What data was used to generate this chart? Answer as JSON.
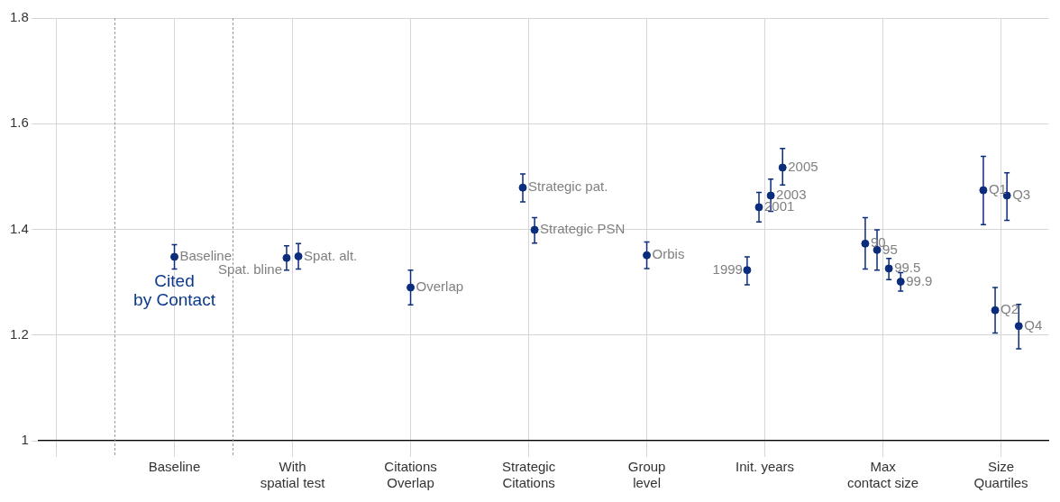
{
  "chart_data": {
    "type": "scatter",
    "categories": [
      null,
      "Baseline",
      "With spatial test",
      "Citations Overlap",
      "Strategic Citations",
      "Group level",
      "Init. years",
      "Max contact size",
      "Size Quartiles"
    ],
    "ylim": [
      1,
      1.8
    ],
    "yticks": [
      1,
      1.2,
      1.4,
      1.6,
      1.8
    ],
    "grid": true,
    "legend": false,
    "marker": "circle",
    "annotations": [
      "Cited by Contact"
    ],
    "series": [
      {
        "name": "Baseline",
        "color": "#0b2d7c",
        "values": [
          null,
          1.348,
          null,
          null,
          null,
          null,
          null,
          null,
          null
        ],
        "errors": [
          null,
          [
            1.325,
            1.371
          ],
          null,
          null,
          null,
          null,
          null,
          null,
          null
        ]
      },
      {
        "name": "Spat. bline",
        "color": "#0b2d7c",
        "values": [
          null,
          null,
          1.346,
          null,
          null,
          null,
          null,
          null,
          null
        ],
        "errors": [
          null,
          null,
          [
            1.323,
            1.369
          ],
          null,
          null,
          null,
          null,
          null,
          null
        ]
      },
      {
        "name": "Spat. alt.",
        "color": "#0b2d7c",
        "values": [
          null,
          null,
          1.349,
          null,
          null,
          null,
          null,
          null,
          null
        ],
        "errors": [
          null,
          null,
          [
            1.325,
            1.373
          ],
          null,
          null,
          null,
          null,
          null,
          null
        ]
      },
      {
        "name": "Overlap",
        "color": "#0b2d7c",
        "values": [
          null,
          null,
          null,
          1.29,
          null,
          null,
          null,
          null,
          null
        ],
        "errors": [
          null,
          null,
          null,
          [
            1.257,
            1.323
          ],
          null,
          null,
          null,
          null,
          null
        ]
      },
      {
        "name": "Strategic pat.",
        "color": "#0b2d7c",
        "values": [
          null,
          null,
          null,
          null,
          1.479,
          null,
          null,
          null,
          null
        ],
        "errors": [
          null,
          null,
          null,
          null,
          [
            1.452,
            1.505
          ],
          null,
          null,
          null,
          null
        ]
      },
      {
        "name": "Strategic PSN",
        "color": "#0b2d7c",
        "values": [
          null,
          null,
          null,
          null,
          1.399,
          null,
          null,
          null,
          null
        ],
        "errors": [
          null,
          null,
          null,
          null,
          [
            1.374,
            1.422
          ],
          null,
          null,
          null,
          null
        ]
      },
      {
        "name": "Orbis",
        "color": "#0b2d7c",
        "values": [
          null,
          null,
          null,
          null,
          null,
          1.351,
          null,
          null,
          null
        ],
        "errors": [
          null,
          null,
          null,
          null,
          null,
          [
            1.326,
            1.376
          ],
          null,
          null,
          null
        ]
      },
      {
        "name": "1999",
        "color": "#0b2d7c",
        "values": [
          null,
          null,
          null,
          null,
          null,
          null,
          1.323,
          null,
          null
        ],
        "errors": [
          null,
          null,
          null,
          null,
          null,
          null,
          [
            1.295,
            1.348
          ],
          null,
          null
        ]
      },
      {
        "name": "2001",
        "color": "#0b2d7c",
        "values": [
          null,
          null,
          null,
          null,
          null,
          null,
          1.442,
          null,
          null
        ],
        "errors": [
          null,
          null,
          null,
          null,
          null,
          null,
          [
            1.414,
            1.47
          ],
          null,
          null
        ]
      },
      {
        "name": "2003",
        "color": "#0b2d7c",
        "values": [
          null,
          null,
          null,
          null,
          null,
          null,
          1.464,
          null,
          null
        ],
        "errors": [
          null,
          null,
          null,
          null,
          null,
          null,
          [
            1.434,
            1.495
          ],
          null,
          null
        ]
      },
      {
        "name": "2005",
        "color": "#0b2d7c",
        "values": [
          null,
          null,
          null,
          null,
          null,
          null,
          1.517,
          null,
          null
        ],
        "errors": [
          null,
          null,
          null,
          null,
          null,
          null,
          [
            1.484,
            1.553
          ],
          null,
          null
        ]
      },
      {
        "name": "90",
        "color": "#0b2d7c",
        "values": [
          null,
          null,
          null,
          null,
          null,
          null,
          null,
          1.373,
          null
        ],
        "errors": [
          null,
          null,
          null,
          null,
          null,
          null,
          null,
          [
            1.325,
            1.422
          ],
          null
        ]
      },
      {
        "name": "95",
        "color": "#0b2d7c",
        "values": [
          null,
          null,
          null,
          null,
          null,
          null,
          null,
          1.361,
          null
        ],
        "errors": [
          null,
          null,
          null,
          null,
          null,
          null,
          null,
          [
            1.323,
            1.399
          ],
          null
        ]
      },
      {
        "name": "99.5",
        "color": "#0b2d7c",
        "values": [
          null,
          null,
          null,
          null,
          null,
          null,
          null,
          1.326,
          null
        ],
        "errors": [
          null,
          null,
          null,
          null,
          null,
          null,
          null,
          [
            1.305,
            1.345
          ],
          null
        ]
      },
      {
        "name": "99.9",
        "color": "#0b2d7c",
        "values": [
          null,
          null,
          null,
          null,
          null,
          null,
          null,
          1.301,
          null
        ],
        "errors": [
          null,
          null,
          null,
          null,
          null,
          null,
          null,
          [
            1.283,
            1.318
          ],
          null
        ]
      },
      {
        "name": "Q1",
        "color": "#0b2d7c",
        "values": [
          null,
          null,
          null,
          null,
          null,
          null,
          null,
          null,
          1.474
        ],
        "errors": [
          null,
          null,
          null,
          null,
          null,
          null,
          null,
          null,
          [
            1.409,
            1.538
          ]
        ]
      },
      {
        "name": "Q2",
        "color": "#0b2d7c",
        "values": [
          null,
          null,
          null,
          null,
          null,
          null,
          null,
          null,
          1.247
        ],
        "errors": [
          null,
          null,
          null,
          null,
          null,
          null,
          null,
          null,
          [
            1.204,
            1.29
          ]
        ]
      },
      {
        "name": "Q3",
        "color": "#0b2d7c",
        "values": [
          null,
          null,
          null,
          null,
          null,
          null,
          null,
          null,
          1.464
        ],
        "errors": [
          null,
          null,
          null,
          null,
          null,
          null,
          null,
          null,
          [
            1.417,
            1.507
          ]
        ]
      },
      {
        "name": "Q4",
        "color": "#0b2d7c",
        "values": [
          null,
          null,
          null,
          null,
          null,
          null,
          null,
          null,
          1.217
        ],
        "errors": [
          null,
          null,
          null,
          null,
          null,
          null,
          null,
          null,
          [
            1.174,
            1.258
          ]
        ]
      }
    ]
  }
}
